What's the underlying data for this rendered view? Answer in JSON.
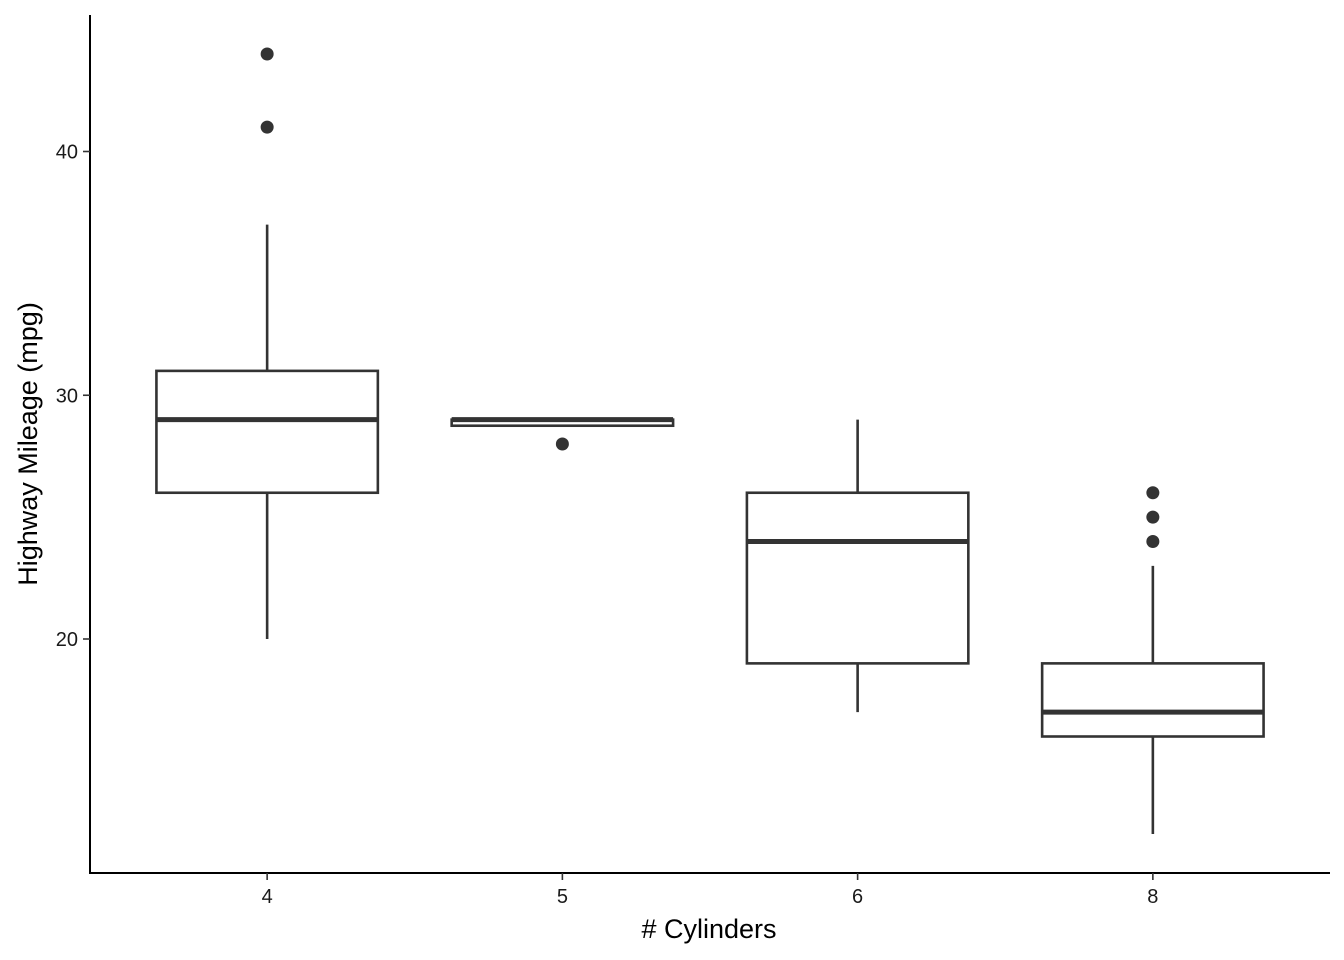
{
  "chart_data": {
    "type": "boxplot",
    "xlabel": "# Cylinders",
    "ylabel": "Highway Mileage (mpg)",
    "categories": [
      "4",
      "5",
      "6",
      "8"
    ],
    "ylim": [
      10.4,
      45.6
    ],
    "y_ticks": [
      20,
      30,
      40
    ],
    "grid": false,
    "colors": {
      "box_stroke": "#333333",
      "box_fill": "#ffffff",
      "axis": "#000000"
    },
    "boxes": [
      {
        "category": "4",
        "whisker_low": 20,
        "q1": 26,
        "median": 29,
        "q3": 31,
        "whisker_high": 37,
        "outliers": [
          41,
          44
        ]
      },
      {
        "category": "5",
        "whisker_low": 28.75,
        "q1": 28.75,
        "median": 29,
        "q3": 29,
        "whisker_high": 29,
        "outliers": [
          28
        ]
      },
      {
        "category": "6",
        "whisker_low": 17,
        "q1": 19,
        "median": 24,
        "q3": 26,
        "whisker_high": 29,
        "outliers": []
      },
      {
        "category": "8",
        "whisker_low": 12,
        "q1": 16,
        "median": 17,
        "q3": 19,
        "whisker_high": 23,
        "outliers": [
          24,
          25,
          26
        ]
      }
    ]
  }
}
